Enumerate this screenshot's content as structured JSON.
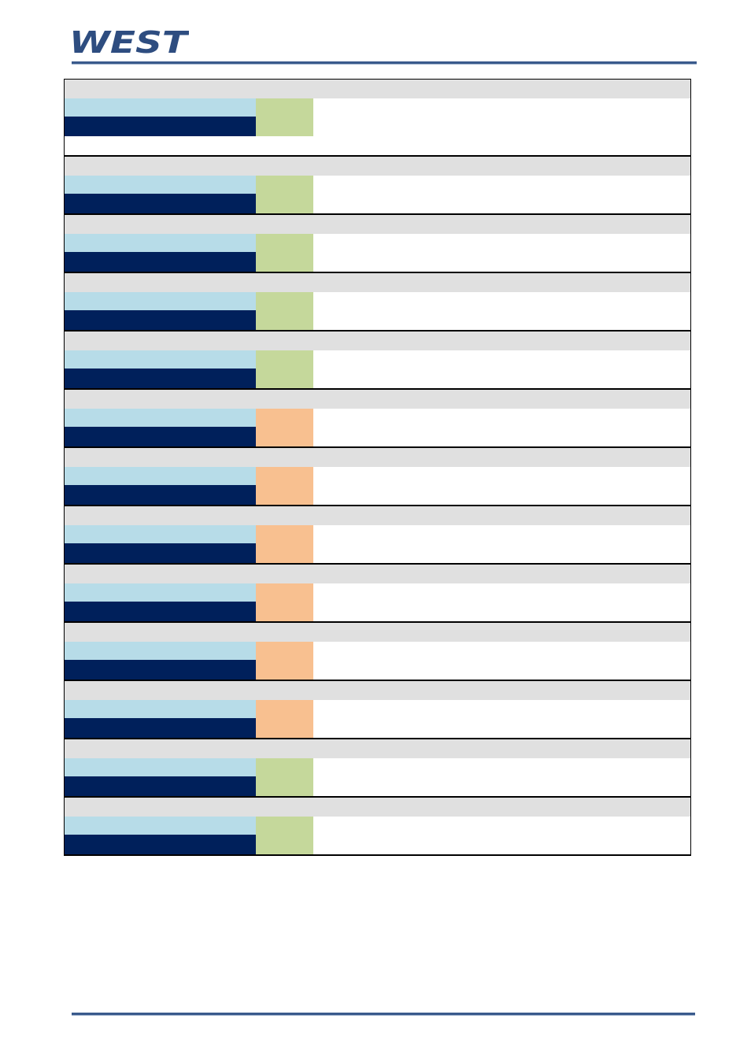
{
  "header": {
    "logo_text": "WEST",
    "brand_color": "#2e4d80"
  },
  "colors": {
    "header_band": "#e0e0e0",
    "name_band": "#b7dce8",
    "mnemonic_band": "#00205b",
    "read_write": "#c5d89b",
    "read_only": "#f8c090",
    "rule": "#3a5a8c"
  },
  "table": {
    "blocks": [
      {
        "header": "",
        "name": "",
        "mnemonic": "",
        "access": "",
        "access_type": "rw",
        "description": ""
      },
      {
        "header": "",
        "name": "",
        "mnemonic": "",
        "access": "",
        "access_type": "rw",
        "description": ""
      },
      {
        "header": "",
        "name": "",
        "mnemonic": "",
        "access": "",
        "access_type": "rw",
        "description": ""
      },
      {
        "header": "",
        "name": "",
        "mnemonic": "",
        "access": "",
        "access_type": "rw",
        "description": ""
      },
      {
        "header": "",
        "name": "",
        "mnemonic": "",
        "access": "",
        "access_type": "rw",
        "description": ""
      },
      {
        "header": "",
        "name": "",
        "mnemonic": "",
        "access": "",
        "access_type": "ro",
        "description": ""
      },
      {
        "header": "",
        "name": "",
        "mnemonic": "",
        "access": "",
        "access_type": "ro",
        "description": ""
      },
      {
        "header": "",
        "name": "",
        "mnemonic": "",
        "access": "",
        "access_type": "ro",
        "description": ""
      },
      {
        "header": "",
        "name": "",
        "mnemonic": "",
        "access": "",
        "access_type": "ro",
        "description": ""
      },
      {
        "header": "",
        "name": "",
        "mnemonic": "",
        "access": "",
        "access_type": "ro",
        "description": ""
      },
      {
        "header": "",
        "name": "",
        "mnemonic": "",
        "access": "",
        "access_type": "ro",
        "description": ""
      },
      {
        "header": "",
        "name": "",
        "mnemonic": "",
        "access": "",
        "access_type": "rw",
        "description": ""
      },
      {
        "header": "",
        "name": "",
        "mnemonic": "",
        "access": "",
        "access_type": "rw",
        "description": ""
      }
    ]
  }
}
